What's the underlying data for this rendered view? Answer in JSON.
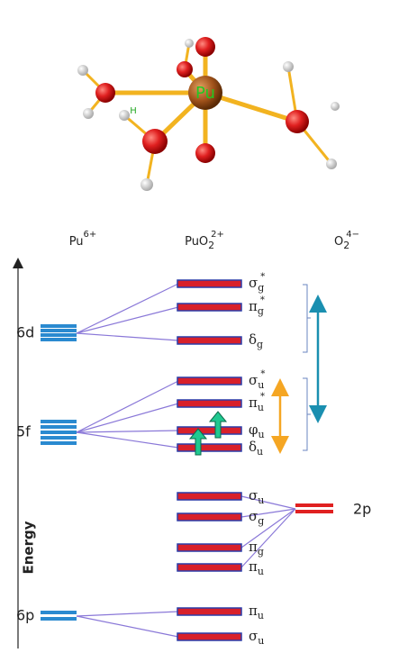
{
  "molecule": {
    "center_atom": "Pu",
    "hydrogen": "H"
  },
  "columns": [
    {
      "base": "Pu",
      "sup": "6+"
    },
    {
      "base": "PuO",
      "sub": "2",
      "sup": "2+"
    },
    {
      "base": "O",
      "sub": "2",
      "sup": "4−"
    }
  ],
  "axis_label": "Energy",
  "pu_levels": [
    "6d",
    "5f",
    "6p"
  ],
  "o_level": "2p",
  "mo_levels": [
    {
      "base": "σ",
      "sub": "g",
      "sup": "*"
    },
    {
      "base": "π",
      "sub": "g",
      "sup": "*"
    },
    {
      "base": "δ",
      "sub": "g"
    },
    {
      "base": "σ",
      "sub": "u",
      "sup": "*"
    },
    {
      "base": "π",
      "sub": "u",
      "sup": "*"
    },
    {
      "base": "φ",
      "sub": "u"
    },
    {
      "base": "δ",
      "sub": "u"
    },
    {
      "base": "σ",
      "sub": "u"
    },
    {
      "base": "σ",
      "sub": "g"
    },
    {
      "base": "π",
      "sub": "g"
    },
    {
      "base": "π",
      "sub": "u"
    },
    {
      "base": "π",
      "sub": "u"
    },
    {
      "base": "σ",
      "sub": "u"
    }
  ]
}
